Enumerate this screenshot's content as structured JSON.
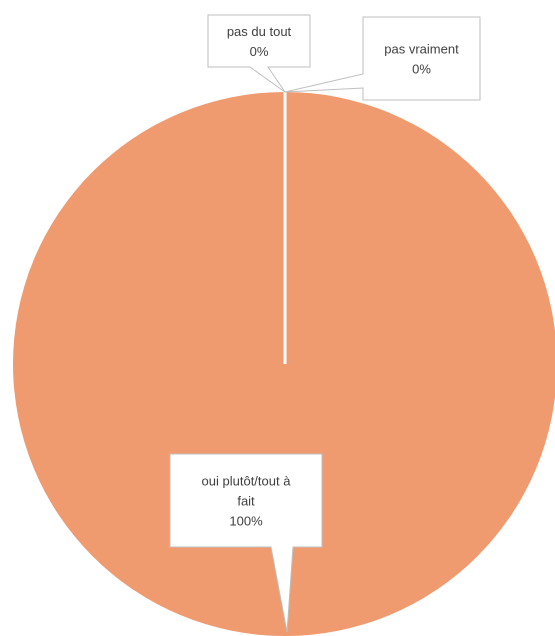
{
  "chart_data": {
    "type": "pie",
    "categories": [
      "pas du tout",
      "pas vraiment",
      "oui plutôt/tout à fait"
    ],
    "values": [
      0,
      0,
      100
    ],
    "data_labels": [
      [
        "pas du tout",
        "0%"
      ],
      [
        "pas vraiment",
        "0%"
      ],
      [
        "oui plutôt/tout à",
        "fait",
        "100%"
      ]
    ],
    "colors": [
      "#ED7D31",
      "#A5A5A5",
      "#F09A6F"
    ],
    "legend": "none"
  }
}
